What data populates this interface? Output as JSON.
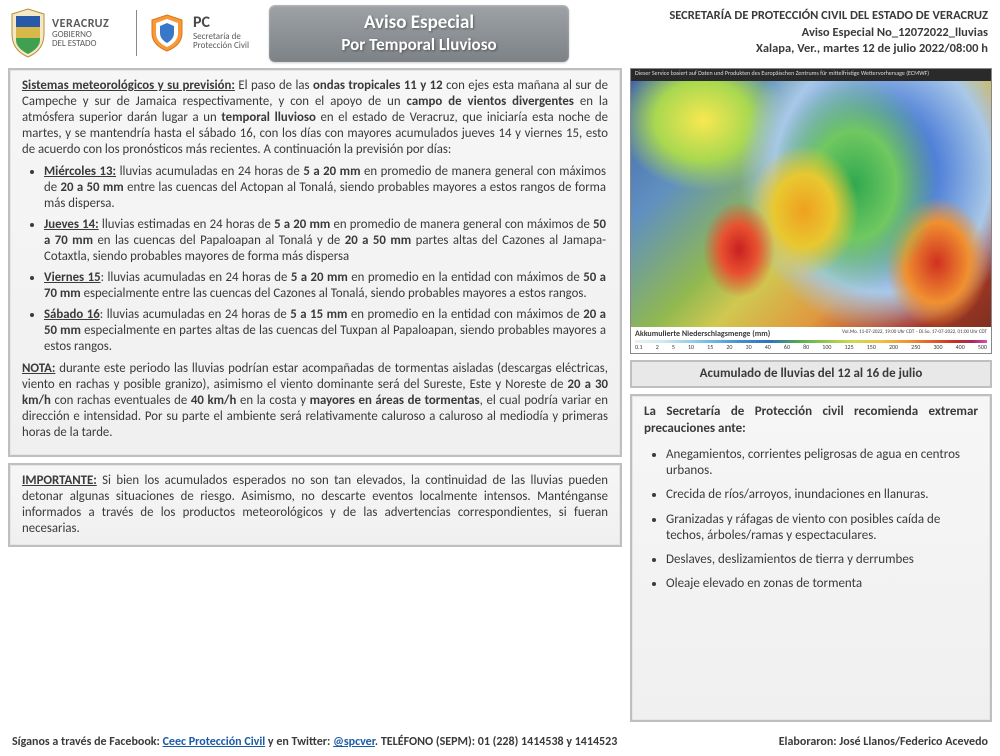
{
  "logos": {
    "veracruz_line1": "VERACRUZ",
    "veracruz_line2": "GOBIERNO",
    "veracruz_line3": "DEL ESTADO",
    "pc_big": "PC",
    "pc_line1": "Secretaría de",
    "pc_line2": "Protección Civil"
  },
  "title": {
    "line1": "Aviso Especial",
    "line2": "Por Temporal Lluvioso"
  },
  "header_right": {
    "line1": "SECRETARÍA DE PROTECCIÓN CIVIL DEL ESTADO DE VERACRUZ",
    "line2": "Aviso Especial No_12072022_lluvias",
    "line3": "Xalapa, Ver., martes 12 de julio 2022/08:00 h"
  },
  "main_box": {
    "intro_lead": "Sistemas meteorológicos y su previsión:",
    "intro_p1a": "El paso de las ",
    "intro_b1": "ondas tropicales 11 y 12",
    "intro_p1b": " con ejes esta mañana al sur de Campeche y sur de Jamaica respectivamente, y con el apoyo de un ",
    "intro_b2": "campo de vientos divergentes",
    "intro_p1c": " en la atmósfera superior darán lugar a un ",
    "intro_b3": "temporal lluvioso",
    "intro_p1d": " en el estado de Veracruz, que iniciaría esta noche de martes, y se mantendría hasta el sábado 16, con los días con mayores acumulados jueves 14 y viernes 15, esto de acuerdo con los pronósticos más recientes. A continuación la previsión por días:",
    "d1_lead": "Miércoles 13:",
    "d1_a": " lluvias acumuladas en 24 horas de ",
    "d1_b1": "5 a 20 mm",
    "d1_b": " en promedio de manera general con máximos de ",
    "d1_b2": "20 a 50 mm",
    "d1_c": " entre las cuencas del Actopan al Tonalá, siendo probables mayores a estos rangos de forma más dispersa.",
    "d2_lead": "Jueves 14:",
    "d2_a": " lluvias estimadas en 24 horas de ",
    "d2_b1": "5 a 20 mm",
    "d2_b": " en promedio de manera general con máximos de ",
    "d2_b2": "50 a 70 mm",
    "d2_c": " en las cuencas del Papaloapan al Tonalá y de ",
    "d2_b3": "20 a 50 mm",
    "d2_d": " partes altas del Cazones al Jamapa-Cotaxtla, siendo probables mayores de forma más dispersa",
    "d3_lead": "Viernes 15",
    "d3_a": ": lluvias acumuladas en 24 horas de ",
    "d3_b1": "5 a 20 mm",
    "d3_b": " en promedio en la entidad con máximos de ",
    "d3_b2": "50 a 70 mm",
    "d3_c": " especialmente entre las cuencas del Cazones al Tonalá, siendo probables mayores a estos rangos.",
    "d4_lead": "Sábado 16",
    "d4_a": ": lluvias acumuladas en 24 horas de ",
    "d4_b1": "5 a 15 mm",
    "d4_b": " en promedio en la entidad con máximos de ",
    "d4_b2": "20 a 50 mm",
    "d4_c": " especialmente en partes altas de las cuencas del Tuxpan al Papaloapan, siendo probables mayores a estos rangos.",
    "nota_lead": "NOTA:",
    "nota_a": " durante este periodo las lluvias podrían estar acompañadas de tormentas aisladas (descargas eléctricas, viento en rachas y posible granizo), asimismo el viento dominante será del Sureste, Este y Noreste de ",
    "nota_b1": "20 a 30 km/h",
    "nota_b": " con rachas eventuales de ",
    "nota_b2": "40 km/h",
    "nota_c": " en la costa y ",
    "nota_b3": "mayores en áreas de tormentas",
    "nota_d": ", el cual podría variar en dirección e intensidad. Por su parte el ambiente será relativamente caluroso a caluroso al mediodía y primeras horas de la tarde."
  },
  "importante": {
    "lead": "IMPORTANTE:",
    "text": " Si bien los acumulados esperados no son tan elevados, la continuidad de las lluvias pueden detonar algunas situaciones de riesgo. Asimismo, no descarte eventos localmente intensos. Manténganse informados a través de los productos meteorológicos y de las advertencias correspondientes, si fueran necesarias."
  },
  "map": {
    "header_text": "Dieser Service basiert auf Daten und Produkten des Europäischen Zentrums für mittelfristige Wettervorhersage (ECMWF)",
    "legend_title": "Akkumulierte Niederschlagsmenge (mm)",
    "legend_dates": "Vol.Mo. 11-07-2022, 19:00 Uhr CDT – Di.So. 17-07-2022, 01:00 Uhr CDT",
    "legend_vals": [
      "0.1",
      "2",
      "5",
      "10",
      "15",
      "20",
      "30",
      "40",
      "60",
      "80",
      "100",
      "125",
      "150",
      "200",
      "250",
      "300",
      "400",
      "500"
    ],
    "caption": "Acumulado de lluvias del 12 al 16 de julio"
  },
  "recommendations": {
    "title": "La Secretaría de Protección civil recomienda extremar precauciones ante:",
    "items": [
      "Anegamientos, corrientes peligrosas de agua en centros urbanos.",
      "Crecida de ríos/arroyos, inundaciones en llanuras.",
      "Granizadas y ráfagas de viento con posibles caída de techos,  árboles/ramas y espectaculares.",
      "Deslaves, deslizamientos de tierra y derrumbes",
      "Oleaje elevado en zonas de tormenta"
    ]
  },
  "footer": {
    "left_a": "Síganos a través de Facebook: ",
    "fb": "Ceec Protección Civil",
    "left_b": "  y en Twitter: ",
    "tw": "@spcver",
    "left_c": ".  TELÉFONO (SEPM):  01 (228) 1414538 y 1414523",
    "right": "Elaboraron: José Llanos/Federico Acevedo"
  }
}
